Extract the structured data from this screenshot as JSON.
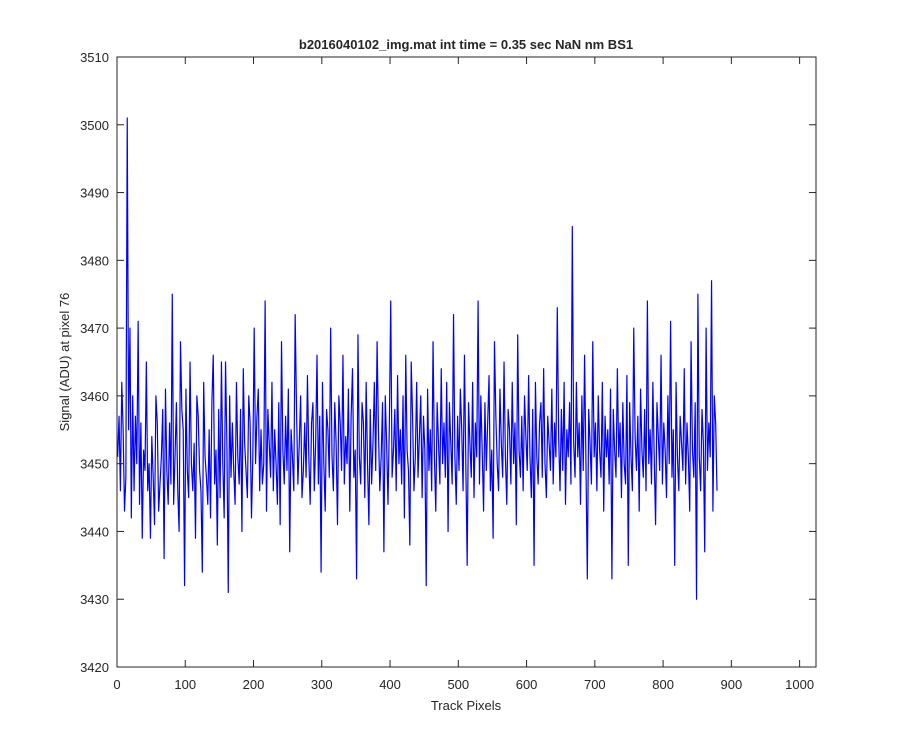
{
  "chart_data": {
    "type": "line",
    "title": "b2016040102_img.mat int time = 0.35 sec  NaN nm BS1",
    "xlabel": "Track Pixels",
    "ylabel": "Signal (ADU) at pixel 76",
    "xlim": [
      0,
      1024
    ],
    "ylim": [
      3420,
      3510
    ],
    "xticks": [
      0,
      100,
      200,
      300,
      400,
      500,
      600,
      700,
      800,
      900,
      1000
    ],
    "yticks": [
      3420,
      3430,
      3440,
      3450,
      3460,
      3470,
      3480,
      3490,
      3500,
      3510
    ],
    "grid": false,
    "legend": "none",
    "series_color": "#0000ff",
    "series": [
      {
        "x_start": 1,
        "x_step": 2,
        "values": [
          3451,
          3457,
          3446,
          3462,
          3455,
          3443,
          3448,
          3501,
          3455,
          3470,
          3442,
          3460,
          3446,
          3457,
          3450,
          3471,
          3444,
          3456,
          3439,
          3452,
          3449,
          3465,
          3446,
          3450,
          3439,
          3454,
          3448,
          3441,
          3460,
          3456,
          3443,
          3447,
          3451,
          3458,
          3436,
          3461,
          3449,
          3444,
          3456,
          3447,
          3475,
          3444,
          3451,
          3459,
          3446,
          3440,
          3468,
          3458,
          3455,
          3432,
          3461,
          3449,
          3445,
          3465,
          3450,
          3446,
          3453,
          3439,
          3460,
          3457,
          3449,
          3446,
          3434,
          3462,
          3451,
          3448,
          3444,
          3455,
          3442,
          3459,
          3466,
          3447,
          3452,
          3438,
          3458,
          3445,
          3465,
          3450,
          3442,
          3465,
          3453,
          3431,
          3460,
          3448,
          3456,
          3449,
          3444,
          3462,
          3451,
          3447,
          3458,
          3440,
          3464,
          3453,
          3449,
          3445,
          3460,
          3456,
          3442,
          3451,
          3470,
          3450,
          3457,
          3461,
          3446,
          3455,
          3447,
          3450,
          3474,
          3443,
          3458,
          3453,
          3448,
          3462,
          3446,
          3455,
          3450,
          3444,
          3459,
          3441,
          3468,
          3452,
          3447,
          3457,
          3449,
          3461,
          3437,
          3455,
          3451,
          3446,
          3472,
          3458,
          3447,
          3453,
          3460,
          3445,
          3449,
          3456,
          3448,
          3463,
          3451,
          3444,
          3456,
          3459,
          3446,
          3453,
          3466,
          3447,
          3457,
          3434,
          3462,
          3450,
          3443,
          3458,
          3455,
          3448,
          3470,
          3451,
          3446,
          3459,
          3453,
          3441,
          3460,
          3456,
          3449,
          3466,
          3447,
          3454,
          3450,
          3461,
          3443,
          3457,
          3464,
          3448,
          3452,
          3433,
          3469,
          3451,
          3447,
          3459,
          3456,
          3445,
          3462,
          3450,
          3441,
          3458,
          3447,
          3453,
          3462,
          3449,
          3468,
          3455,
          3446,
          3451,
          3459,
          3437,
          3460,
          3453,
          3444,
          3456,
          3474,
          3448,
          3452,
          3458,
          3446,
          3463,
          3450,
          3455,
          3447,
          3460,
          3442,
          3466,
          3452,
          3449,
          3438,
          3465,
          3457,
          3446,
          3451,
          3462,
          3448,
          3454,
          3460,
          3445,
          3457,
          3452,
          3432,
          3461,
          3449,
          3455,
          3446,
          3468,
          3451,
          3443,
          3459,
          3453,
          3447,
          3464,
          3450,
          3456,
          3448,
          3462,
          3440,
          3459,
          3453,
          3447,
          3472,
          3451,
          3444,
          3457,
          3449,
          3461,
          3455,
          3446,
          3466,
          3450,
          3435,
          3459,
          3453,
          3448,
          3462,
          3445,
          3456,
          3451,
          3474,
          3447,
          3460,
          3452,
          3443,
          3459,
          3449,
          3456,
          3463,
          3446,
          3452,
          3439,
          3468,
          3457,
          3450,
          3446,
          3461,
          3453,
          3448,
          3465,
          3451,
          3444,
          3458,
          3455,
          3447,
          3462,
          3450,
          3456,
          3441,
          3469,
          3452,
          3448,
          3457,
          3446,
          3460,
          3454,
          3449,
          3463,
          3451,
          3445,
          3458,
          3435,
          3462,
          3451,
          3447,
          3456,
          3459,
          3448,
          3464,
          3450,
          3445,
          3457,
          3453,
          3449,
          3461,
          3447,
          3456,
          3451,
          3473,
          3454,
          3446,
          3458,
          3449,
          3462,
          3444,
          3455,
          3451,
          3459,
          3447,
          3485,
          3453,
          3448,
          3462,
          3451,
          3456,
          3444,
          3460,
          3449,
          3466,
          3450,
          3433,
          3458,
          3453,
          3447,
          3468,
          3451,
          3456,
          3446,
          3460,
          3452,
          3448,
          3462,
          3443,
          3457,
          3451,
          3455,
          3447,
          3461,
          3433,
          3458,
          3452,
          3448,
          3464,
          3451,
          3456,
          3445,
          3459,
          3450,
          3447,
          3463,
          3435,
          3459,
          3451,
          3446,
          3470,
          3454,
          3449,
          3457,
          3443,
          3461,
          3452,
          3448,
          3458,
          3446,
          3474,
          3450,
          3455,
          3447,
          3462,
          3451,
          3441,
          3459,
          3454,
          3449,
          3466,
          3447,
          3456,
          3452,
          3445,
          3460,
          3450,
          3471,
          3448,
          3455,
          3435,
          3462,
          3451,
          3446,
          3457,
          3453,
          3449,
          3464,
          3447,
          3456,
          3451,
          3443,
          3468,
          3452,
          3448,
          3459,
          3430,
          3475,
          3451,
          3446,
          3458,
          3453,
          3437,
          3470,
          3449,
          3456,
          3451,
          3477,
          3443,
          3460,
          3456,
          3446
        ]
      }
    ]
  }
}
